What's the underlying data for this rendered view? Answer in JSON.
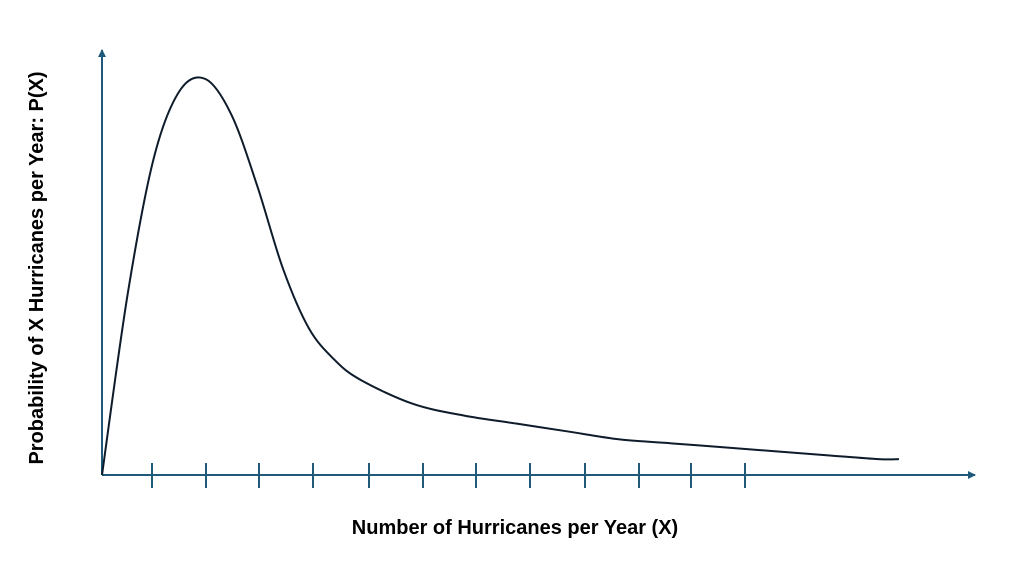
{
  "chart_data": {
    "type": "line",
    "title": "",
    "xlabel": "Number of Hurricanes per Year (X)",
    "ylabel": "Probability of X Hurricanes per Year: P(X)",
    "x_ticks_count": 12,
    "grid": false,
    "legend": "none",
    "ylim": [
      0,
      1
    ],
    "xlim": [
      0,
      16
    ],
    "colors": {
      "axis": "#1f5a7a",
      "curve": "#0d1b2a",
      "text": "#000000"
    },
    "series": [
      {
        "x": [
          0,
          0.5,
          1.0,
          1.5,
          2.0,
          2.5,
          3.0,
          3.5,
          4.0,
          4.5,
          5.0,
          6.0,
          7.0,
          8.0,
          9.0,
          10.0,
          11.0,
          12.0,
          13.0,
          14.0,
          15.0,
          15.4
        ],
        "values": [
          0,
          0.46,
          0.8,
          0.97,
          1.0,
          0.91,
          0.73,
          0.52,
          0.37,
          0.29,
          0.24,
          0.18,
          0.15,
          0.13,
          0.11,
          0.09,
          0.08,
          0.07,
          0.06,
          0.05,
          0.04,
          0.04
        ]
      }
    ]
  }
}
